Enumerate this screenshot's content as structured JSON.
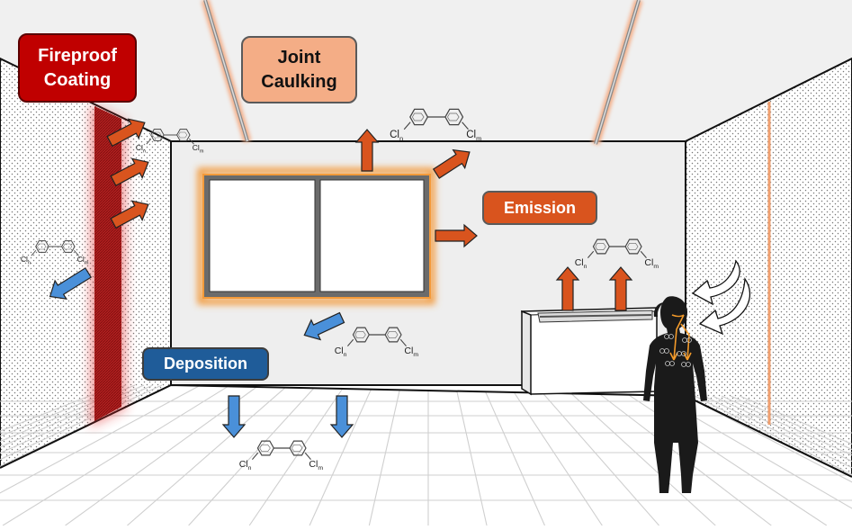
{
  "labels": {
    "fireproof_coating": "Fireproof\nCoating",
    "joint_caulking": "Joint\nCaulking",
    "emission": "Emission",
    "deposition": "Deposition"
  },
  "molecule": {
    "cl_n": "Cl",
    "cl_m": "Cl",
    "sub_n": "n",
    "sub_m": "m"
  },
  "colors": {
    "fire_red": "#c00000",
    "caulk_orange": "#f4ad86",
    "emission_orange": "#d9541e",
    "deposition_blue": "#1f5c99",
    "arrow_orange": "#d9541e",
    "arrow_blue": "#4a90d9"
  },
  "icons": {
    "person": "person-silhouette-icon",
    "air_inflow": "curved-arrow-icon",
    "molecule": "pcb-molecule-icon"
  }
}
